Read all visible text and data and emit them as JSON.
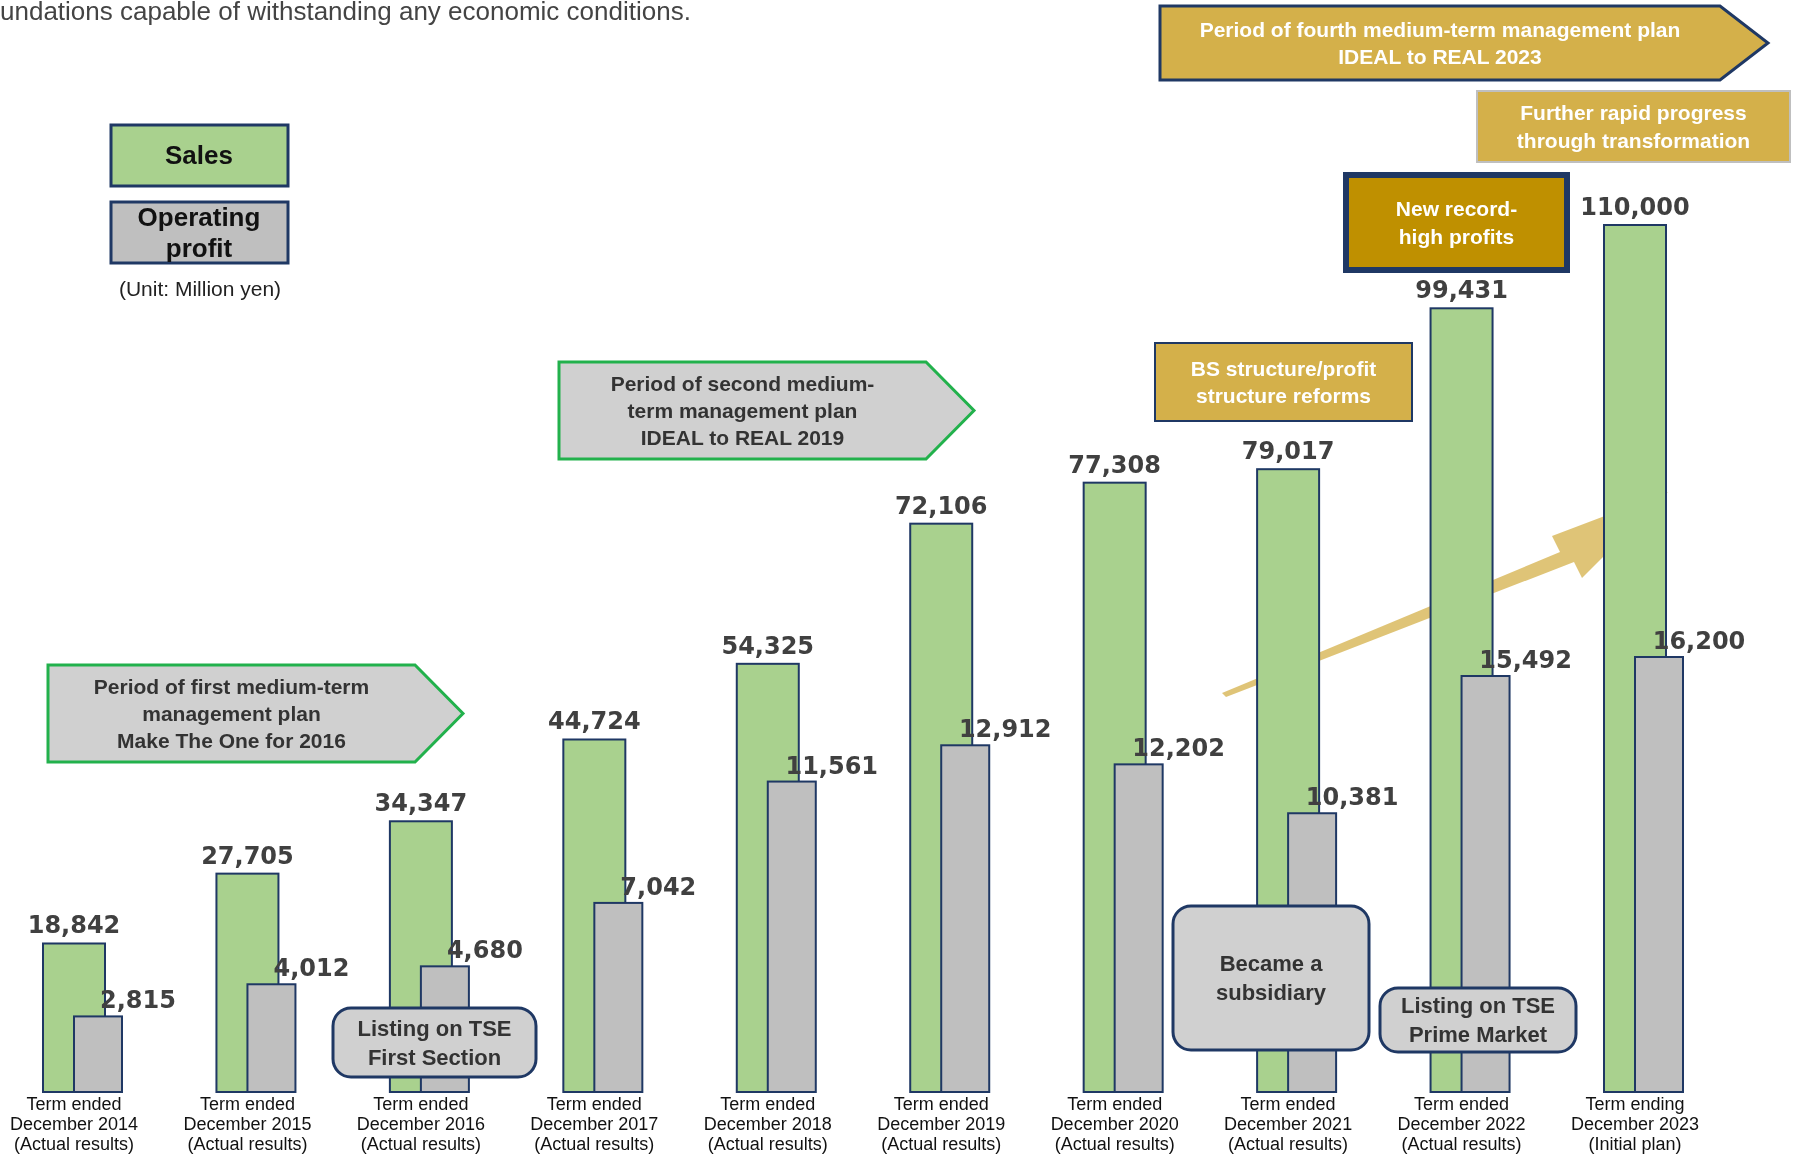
{
  "chart_data": {
    "type": "bar",
    "categories": [
      "Term ended\nDecember 2014\n(Actual results)",
      "Term ended\nDecember 2015\n(Actual results)",
      "Term ended\nDecember 2016\n(Actual results)",
      "Term ended\nDecember 2017\n(Actual results)",
      "Term ended\nDecember 2018\n(Actual results)",
      "Term ended\nDecember 2019\n(Actual results)",
      "Term ended\nDecember 2020\n(Actual results)",
      "Term ended\nDecember 2021\n(Actual results)",
      "Term ended\nDecember 2022\n(Actual results)",
      "Term ending\nDecember 2023\n(Initial plan)"
    ],
    "series": [
      {
        "name": "Sales",
        "color": "#a9d18e",
        "values": [
          18842,
          27705,
          34347,
          44724,
          54325,
          72106,
          77308,
          79017,
          99431,
          110000
        ],
        "value_labels": [
          "18,842",
          "27,705",
          "34,347",
          "44,724",
          "54,325",
          "72,106",
          "77,308",
          "79,017",
          "99,431",
          "110,000"
        ]
      },
      {
        "name": "Operating\nprofit",
        "color": "#bfbfbf",
        "axis": "y2",
        "values": [
          2815,
          4012,
          4680,
          7042,
          11561,
          12912,
          12202,
          10381,
          15492,
          16200
        ],
        "value_labels": [
          "2,815",
          "4,012",
          "4,680",
          "7,042",
          "11,561",
          "12,912",
          "12,202",
          "10,381",
          "15,492",
          "16,200"
        ]
      }
    ],
    "legend": "top left",
    "annotations": [
      "undations capable of withstanding any economic conditions.",
      "Period of first medium-term\nmanagement plan\nMake The One for 2016",
      "Period of second medium-\nterm management plan\nIDEAL to REAL 2019",
      "Period of fourth medium-term management plan\nIDEAL to REAL 2023",
      "Further rapid progress\nthrough transformation",
      "New record-\nhigh profits",
      "BS structure/profit\nstructure reforms",
      "Listing on TSE\nFirst Section",
      "Became a\nsubsidiary",
      "Listing on TSE\nPrime Market",
      "(Unit: Million yen)"
    ]
  }
}
